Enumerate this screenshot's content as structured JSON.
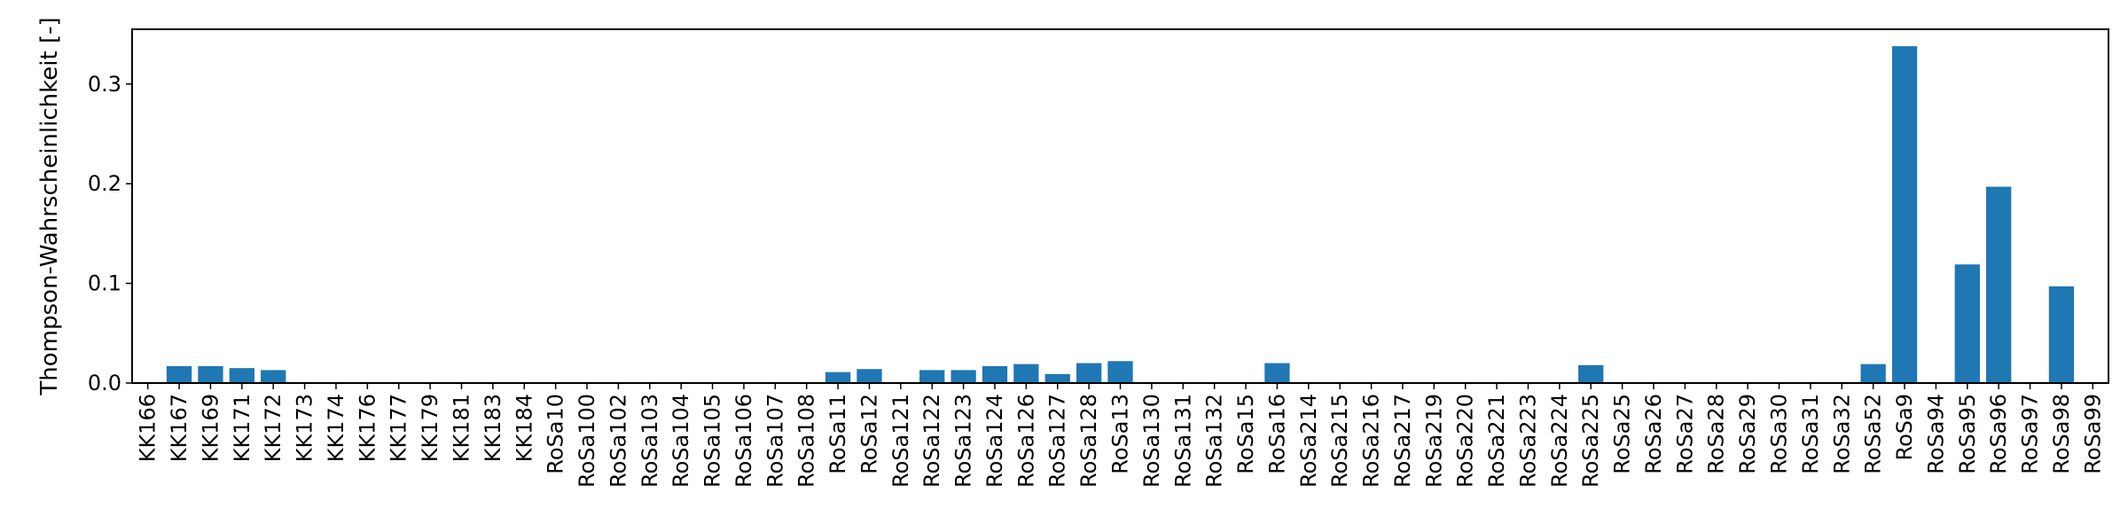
{
  "chart_data": {
    "type": "bar",
    "ylabel": "Thompson-Wahrscheinlichkeit [-]",
    "xlabel": "",
    "ylim": [
      0,
      0.355
    ],
    "yticks": [
      0.0,
      0.1,
      0.2,
      0.3
    ],
    "ytick_labels": [
      "0.0",
      "0.1",
      "0.2",
      "0.3"
    ],
    "grid": false,
    "bar_color": "#1f77b4",
    "categories": [
      "KK166",
      "KK167",
      "KK169",
      "KK171",
      "KK172",
      "KK173",
      "KK174",
      "KK176",
      "KK177",
      "KK179",
      "KK181",
      "KK183",
      "KK184",
      "RoSa10",
      "RoSa100",
      "RoSa102",
      "RoSa103",
      "RoSa104",
      "RoSa105",
      "RoSa106",
      "RoSa107",
      "RoSa108",
      "RoSa11",
      "RoSa12",
      "RoSa121",
      "RoSa122",
      "RoSa123",
      "RoSa124",
      "RoSa126",
      "RoSa127",
      "RoSa128",
      "RoSa13",
      "RoSa130",
      "RoSa131",
      "RoSa132",
      "RoSa15",
      "RoSa16",
      "RoSa214",
      "RoSa215",
      "RoSa216",
      "RoSa217",
      "RoSa219",
      "RoSa220",
      "RoSa221",
      "RoSa223",
      "RoSa224",
      "RoSa225",
      "RoSa25",
      "RoSa26",
      "RoSa27",
      "RoSa28",
      "RoSa29",
      "RoSa30",
      "RoSa31",
      "RoSa32",
      "RoSa52",
      "RoSa9",
      "RoSa94",
      "RoSa95",
      "RoSa96",
      "RoSa97",
      "RoSa98",
      "RoSa99"
    ],
    "values": [
      0,
      0.017,
      0.017,
      0.015,
      0.013,
      0,
      0,
      0,
      0,
      0,
      0,
      0,
      0,
      0,
      0,
      0,
      0,
      0,
      0,
      0,
      0,
      0,
      0.011,
      0.014,
      0,
      0.013,
      0.013,
      0.017,
      0.019,
      0.009,
      0.02,
      0.022,
      0,
      0,
      0,
      0,
      0.02,
      0,
      0,
      0,
      0,
      0,
      0,
      0,
      0,
      0,
      0.018,
      0,
      0,
      0,
      0,
      0,
      0,
      0,
      0,
      0.019,
      0.338,
      0,
      0.119,
      0.197,
      0,
      0.097,
      0
    ]
  }
}
